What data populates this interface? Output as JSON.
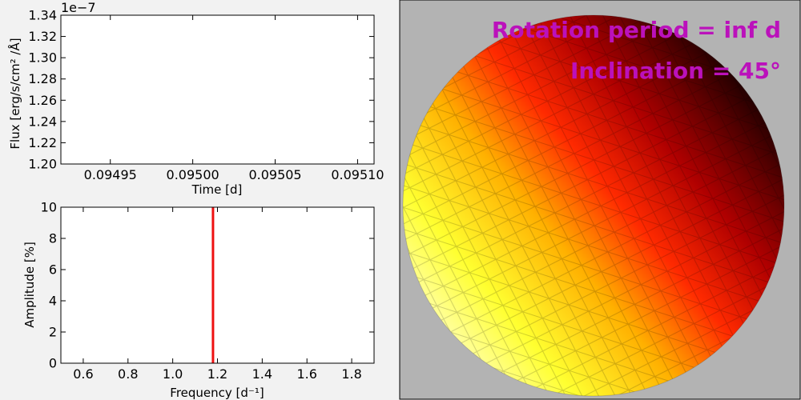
{
  "colors": {
    "figure_bg": "#f2f2f2",
    "axes_bg": "#ffffff",
    "frequency_line": "#ee1111",
    "annotation": "#bb11bb",
    "star_panel_bg": "#b3b3b3"
  },
  "chart_data": [
    {
      "type": "line",
      "id": "flux",
      "xlabel": "Time [d]",
      "ylabel": "Flux [erg/s/cm² /Å]",
      "offset_text": "1e−7",
      "xlim": [
        0.09492,
        0.09511
      ],
      "ylim": [
        1.2,
        1.34
      ],
      "xticks": [
        0.09495,
        0.095,
        0.09505,
        0.0951
      ],
      "xtick_labels": [
        "0.09495",
        "0.09500",
        "0.09505",
        "0.09510"
      ],
      "yticks": [
        1.2,
        1.22,
        1.24,
        1.26,
        1.28,
        1.3,
        1.32,
        1.34
      ],
      "ytick_labels": [
        "1.20",
        "1.22",
        "1.24",
        "1.26",
        "1.28",
        "1.30",
        "1.32",
        "1.34"
      ],
      "series": [],
      "grid": false
    },
    {
      "type": "line",
      "id": "amplitude",
      "xlabel": "Frequency [d⁻¹]",
      "ylabel": "Amplitude [%]",
      "xlim": [
        0.5,
        1.9
      ],
      "ylim": [
        0,
        10
      ],
      "xticks": [
        0.6,
        0.8,
        1.0,
        1.2,
        1.4,
        1.6,
        1.8
      ],
      "xtick_labels": [
        "0.6",
        "0.8",
        "1.0",
        "1.2",
        "1.4",
        "1.6",
        "1.8"
      ],
      "yticks": [
        0,
        2,
        4,
        6,
        8,
        10
      ],
      "ytick_labels": [
        "0",
        "2",
        "4",
        "6",
        "8",
        "10"
      ],
      "vlines": [
        {
          "x": 1.18,
          "y": [
            0,
            10
          ]
        }
      ],
      "grid": false
    }
  ],
  "star_panel": {
    "title": "Rotation period = inf d",
    "subtitle": "Inclination = 45°"
  }
}
